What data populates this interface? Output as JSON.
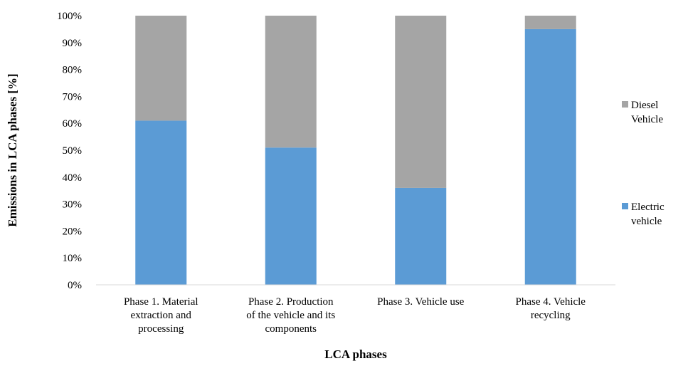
{
  "chart_data": {
    "type": "stacked-bar-100",
    "title": "",
    "xlabel": "LCA phases",
    "ylabel": "Emissions in LCA phases [%]",
    "ylim": [
      0,
      100
    ],
    "y_ticks": [
      "0%",
      "10%",
      "20%",
      "30%",
      "40%",
      "50%",
      "60%",
      "70%",
      "80%",
      "90%",
      "100%"
    ],
    "categories": [
      [
        "Phase 1. Material",
        "extraction and",
        "processing"
      ],
      [
        "Phase 2. Production",
        "of the vehicle and its",
        "components"
      ],
      [
        "Phase 3. Vehicle use"
      ],
      [
        "Phase 4. Vehicle",
        "recycling"
      ]
    ],
    "series": [
      {
        "name": [
          "Electric",
          "vehicle"
        ],
        "color": "#5b9bd5",
        "values": [
          61,
          51,
          36,
          95
        ]
      },
      {
        "name": [
          "Diesel",
          "Vehicle"
        ],
        "color": "#a5a5a5",
        "values": [
          39,
          49,
          64,
          5
        ]
      }
    ],
    "grid": false,
    "legend_position": "right"
  }
}
